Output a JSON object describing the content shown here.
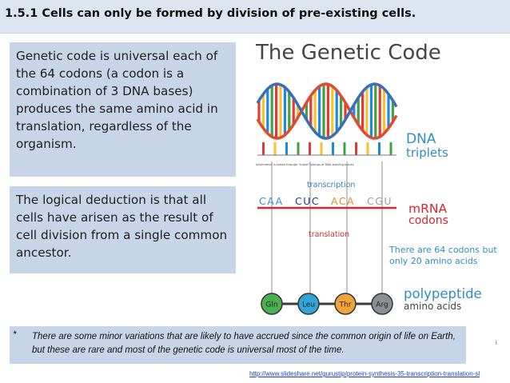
{
  "slide": {
    "title": "1.5.1 Cells can only be formed by division of pre-existing cells.",
    "box_1": "Genetic code is universal each of the 64 codons (a codon is a combination of 3 DNA bases) produces the same amino acid in translation, regardless of the organism.",
    "box_2": "The logical deduction is that all cells have arisen as the result of cell division from a single common ancestor.",
    "footnote_marker": "*",
    "footnote": "There are some minor variations that are likely to have accrued since the common origin of life on Earth, but these are rare and most of the genetic code is universal most of the time.",
    "source_url": "http://www.slideshare.net/gurustip/protein-synthesis-35-transcription-translation-sl",
    "slide_mark": "i"
  },
  "figure": {
    "title": "The Genetic Code",
    "dna_caption": "Information is coded through \"triplet\" groups of DNA building blocks",
    "dna_label_1": "DNA",
    "dna_label_2": "triplets",
    "transcription_label": "transcription",
    "translation_label": "translation",
    "mrna_codons": [
      {
        "text": "CAA",
        "color": "#3a8fc9"
      },
      {
        "text": "CUC",
        "color": "#27349a"
      },
      {
        "text": "ACA",
        "color": "#e0902b"
      },
      {
        "text": "CGU",
        "color": "#9aa0a6"
      }
    ],
    "mrna_label_1": "mRNA",
    "mrna_label_2": "codons",
    "note_line_1": "There are 64 codons but",
    "note_line_2": "only 20 amino acids",
    "amino_acids": [
      {
        "text": "Gln",
        "color": "#4caf50"
      },
      {
        "text": "Leu",
        "color": "#31a6d6"
      },
      {
        "text": "Thr",
        "color": "#f2a33a"
      },
      {
        "text": "Arg",
        "color": "#8a8f94"
      }
    ],
    "polypeptide_label_1": "polypeptide",
    "polypeptide_label_2": "amino acids",
    "colors": {
      "mrna_strand": "#d9262c",
      "dna_label": "#2f8fc4",
      "mrna_label": "#d9262c",
      "polypeptide_label": "#2f8fc4",
      "note": "#2f8fc4",
      "transcription": "#3a7fb8",
      "translation": "#c0322d",
      "dna_backbone_1": "#e04b2e",
      "dna_backbone_2": "#3a6fb5",
      "rungs": [
        "#e53935",
        "#fbc02d",
        "#1e88e5",
        "#43a047"
      ]
    }
  }
}
